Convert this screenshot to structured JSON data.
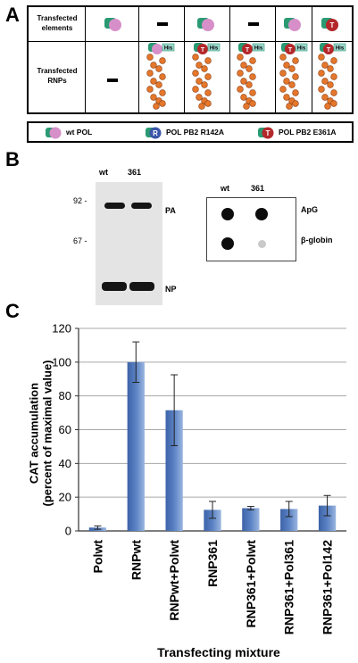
{
  "panel_a": {
    "letter": "A",
    "row1_label": [
      "Transfected",
      "elements"
    ],
    "row2_label": [
      "Transfected",
      "RNPs"
    ],
    "dash": "-",
    "his_tag": "His",
    "letter_mutant_t": "T",
    "letter_mutant_r": "R",
    "legend": [
      {
        "label": "wt POL",
        "icon": "polymerase-wt-icon"
      },
      {
        "label": "POL PB2 R142A",
        "icon": "polymerase-r-icon"
      },
      {
        "label": "POL PB2 E361A",
        "icon": "polymerase-t-icon"
      }
    ],
    "colors": {
      "green": "#2a9a72",
      "pink": "#d68fc8",
      "blue": "#3a55a8",
      "red": "#b4272a",
      "rnp_orange": "#e4772b"
    }
  },
  "panel_b": {
    "letter": "B",
    "gel": {
      "lanes": [
        "wt",
        "361"
      ],
      "markers": [
        "92 -",
        "67 -"
      ],
      "bands": [
        "PA",
        "NP"
      ]
    },
    "blot": {
      "lanes": [
        "wt",
        "361"
      ],
      "rows": [
        "ApG",
        "β-globin"
      ]
    }
  },
  "panel_c": {
    "letter": "C",
    "ylabel_line1": "CAT accumulation",
    "ylabel_line2": "(percent of maximal value)",
    "xlabel": "Transfecting mixture"
  },
  "chart_data": {
    "type": "bar",
    "categories": [
      "Polwt",
      "RNPwt",
      "RNPwt+Polwt",
      "RNP361",
      "RNP361+Polwt",
      "RNP361+Pol361",
      "RNP361+Pol142"
    ],
    "values": [
      2,
      100,
      71.5,
      12.5,
      13.5,
      13,
      15
    ],
    "errors": [
      1,
      12,
      21,
      5,
      1,
      4.5,
      6
    ],
    "ylim": [
      0,
      120
    ],
    "yticks": [
      0,
      20,
      40,
      60,
      80,
      100,
      120
    ],
    "ylabel": "CAT accumulation (percent of maximal value)",
    "xlabel": "Transfecting mixture",
    "grid": true,
    "bar_color": "#5b82c4"
  }
}
